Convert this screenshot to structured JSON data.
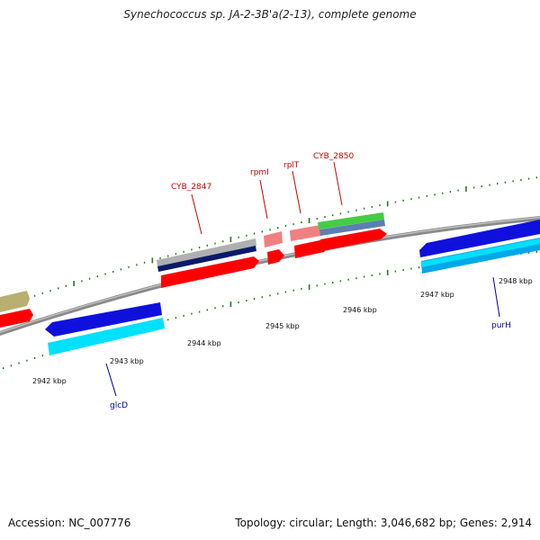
{
  "title": "Synechococcus sp. JA-2-3B'a(2-13), complete genome",
  "footer": {
    "accession": "Accession: NC_007776",
    "summary": "Topology: circular; Length: 3,046,682 bp; Genes: 2,914"
  },
  "colors": {
    "backbone": "#8a8a8a",
    "tick": "#1e7a1e",
    "top_label": "#cc0000",
    "bottom_label": "#0000aa",
    "forward_gene": "#ff0000",
    "forward_gene_light": "#f08080",
    "reverse_gene": "#1010dd",
    "reverse_gene_light": "#00e0ff",
    "rna": "#b0b0b0",
    "dark_feature": "#0a1a6a",
    "green_feature": "#44cc44",
    "blue_feature": "#5b7fb0",
    "olive_feature": "#b8b070"
  },
  "kbp_labels": [
    "2942 kbp",
    "2943 kbp",
    "2944 kbp",
    "2945 kbp",
    "2946 kbp",
    "2947 kbp",
    "2948 kbp"
  ],
  "gene_labels_top": [
    "CYB_2847",
    "rpmI",
    "rplT",
    "CYB_2850"
  ],
  "gene_labels_bottom": [
    "glcD",
    "purH"
  ]
}
